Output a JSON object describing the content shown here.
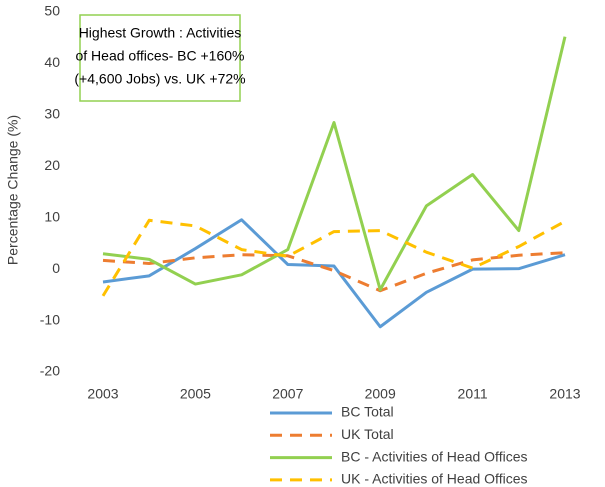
{
  "chart_data": {
    "type": "line",
    "y_label": "Percentage Change (%)",
    "annotation": [
      "Highest Growth : Activities",
      "of Head offices-  BC +160%",
      "(+4,600 Jobs) vs. UK +72%"
    ],
    "categories": [
      "2003",
      null,
      "2005",
      null,
      "2007",
      null,
      "2009",
      null,
      "2011",
      null,
      "2013"
    ],
    "ylim": [
      -20,
      50
    ],
    "yticks": [
      -20,
      -10,
      0,
      10,
      20,
      30,
      40,
      50
    ],
    "grid": false,
    "legend": "bottom",
    "series": [
      {
        "name": "BC Total",
        "color": "#5b9bd5",
        "dash": false,
        "values": [
          -2.5,
          -1.3,
          4,
          9.6,
          0.9,
          0.6,
          -11.2,
          -4.5,
          0,
          0.1,
          2.8
        ]
      },
      {
        "name": "UK Total",
        "color": "#ed7d31",
        "dash": true,
        "values": [
          1.7,
          1.1,
          2.2,
          2.8,
          2.6,
          -0.3,
          -4.2,
          -0.8,
          1.8,
          2.7,
          3.2
        ]
      },
      {
        "name": "BC - Activities of Head Offices",
        "color": "#92d050",
        "dash": false,
        "values": [
          3.0,
          1.9,
          -2.9,
          -1.1,
          3.8,
          28.5,
          -4.0,
          12.3,
          18.4,
          7.5,
          45.2
        ]
      },
      {
        "name": "UK - Activities of Head Offices",
        "color": "#ffc000",
        "dash": true,
        "values": [
          -5.2,
          9.5,
          8.4,
          3.8,
          2.5,
          7.3,
          7.5,
          3.3,
          0.2,
          4.4,
          9.3
        ]
      }
    ]
  }
}
